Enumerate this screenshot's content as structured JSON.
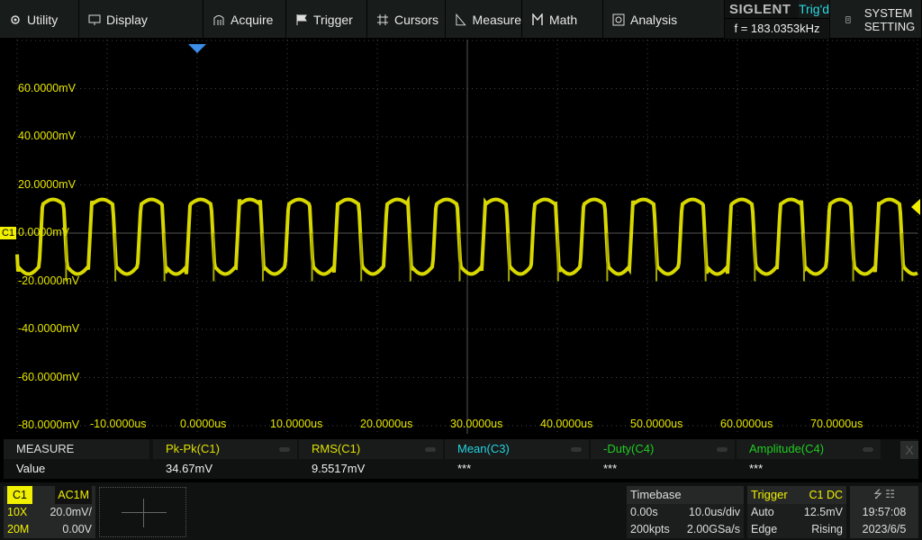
{
  "menu": [
    {
      "label": "Utility",
      "icon": "gear-icon"
    },
    {
      "label": "Display",
      "icon": "monitor-icon"
    },
    {
      "label": "Acquire",
      "icon": "acquire-icon"
    },
    {
      "label": "Trigger",
      "icon": "flag-icon"
    },
    {
      "label": "Cursors",
      "icon": "cursor-grid-icon"
    },
    {
      "label": "Measure",
      "icon": "ruler-icon"
    },
    {
      "label": "Math",
      "icon": "math-icon"
    },
    {
      "label": "Analysis",
      "icon": "analysis-icon"
    }
  ],
  "brand": {
    "logo": "SIGLENT",
    "status": "Trig'd",
    "frequency": "f = 183.0353kHz"
  },
  "system_setting": "SYSTEM SETTING",
  "y_labels": [
    "60.0000mV",
    "40.0000mV",
    "20.0000mV",
    "0.0000mV",
    "-20.0000mV",
    "-40.0000mV",
    "-60.0000mV",
    "-80.0000mV"
  ],
  "x_labels": [
    "-10.0000us",
    "0.0000us",
    "10.0000us",
    "20.0000us",
    "30.0000us",
    "40.0000us",
    "50.0000us",
    "60.0000us",
    "70.0000us"
  ],
  "channel_marker": "C1",
  "colors": {
    "ch1": "#f0f000",
    "ch3": "#22d3e0",
    "ch4": "#22cc22",
    "grid": "#3a3a3a"
  },
  "trace": {
    "high_mV": 14,
    "low_mV": -17,
    "spike_mV": -20
  },
  "measure": {
    "title": "MEASURE",
    "row_label": "Value",
    "columns": [
      {
        "name": "Pk-Pk(C1)",
        "value": "34.67mV",
        "color": "#e0e000"
      },
      {
        "name": "RMS(C1)",
        "value": "9.5517mV",
        "color": "#e0e000"
      },
      {
        "name": "Mean(C3)",
        "value": "***",
        "color": "#22d3e0"
      },
      {
        "name": "-Duty(C4)",
        "value": "***",
        "color": "#22cc22"
      },
      {
        "name": "Amplitude(C4)",
        "value": "***",
        "color": "#22cc22"
      }
    ],
    "close": "X"
  },
  "channel": {
    "name": "C1",
    "coupling": "AC1M",
    "probe": "10X",
    "scale": "20.0mV/",
    "bw": "20M",
    "offset": "0.00V"
  },
  "timebase": {
    "title": "Timebase",
    "delay": "0.00s",
    "scale": "10.0us/div",
    "memory": "200kpts",
    "rate": "2.00GSa/s"
  },
  "trigger": {
    "title": "Trigger",
    "source": "C1",
    "coupling": "DC",
    "mode": "Auto",
    "level": "12.5mV",
    "type": "Edge",
    "slope": "Rising"
  },
  "clock": {
    "time": "19:57:08",
    "date": "2023/6/5"
  }
}
